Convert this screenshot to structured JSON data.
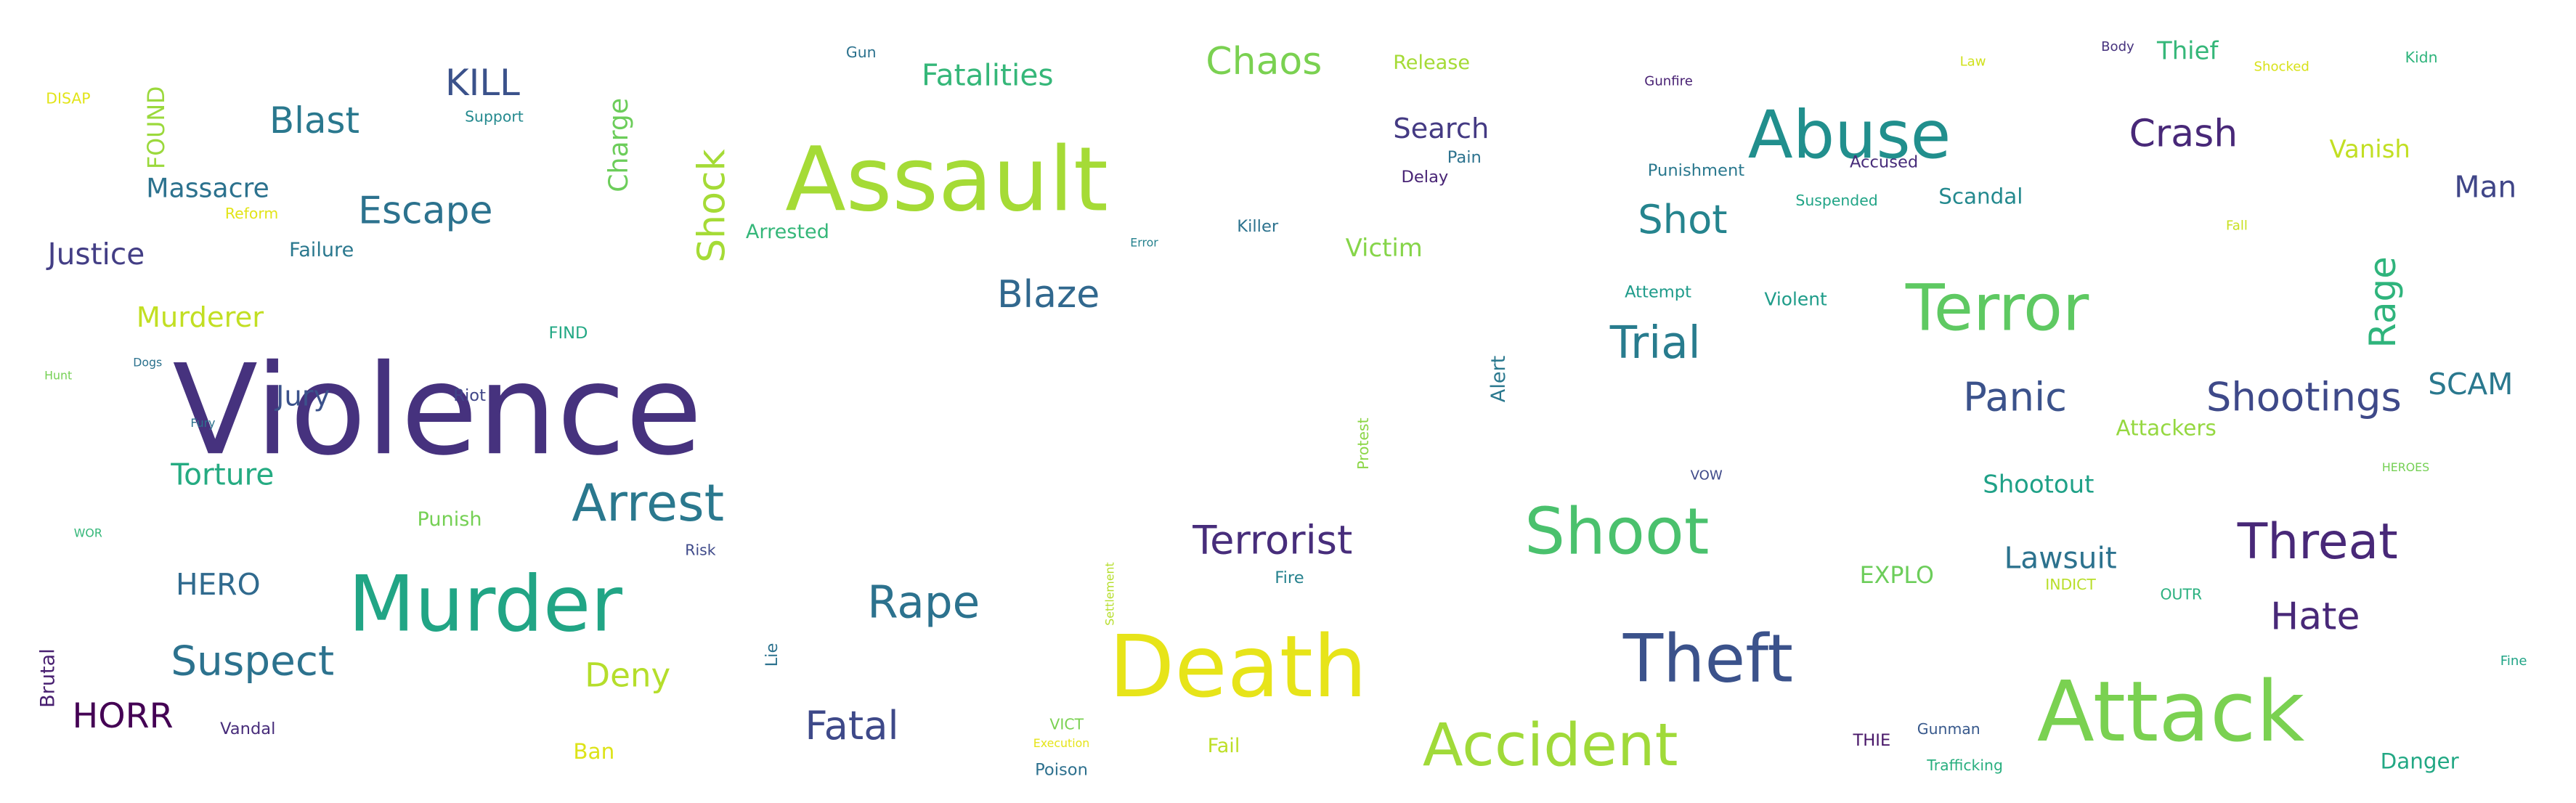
{
  "words": [
    {
      "text": "Violence",
      "color": "#46327e"
    },
    {
      "text": "Assault",
      "color": "#a5db36"
    },
    {
      "text": "Death",
      "color": "#e7e419"
    },
    {
      "text": "Murder",
      "color": "#21a585"
    },
    {
      "text": "Attack",
      "color": "#7ad151"
    },
    {
      "text": "Abuse",
      "color": "#218f8d"
    },
    {
      "text": "Terror",
      "color": "#5ec962"
    },
    {
      "text": "Theft",
      "color": "#3b528b"
    },
    {
      "text": "Accident",
      "color": "#a0da39"
    },
    {
      "text": "Shoot",
      "color": "#4ac16d"
    },
    {
      "text": "Arrest",
      "color": "#2a788e"
    },
    {
      "text": "Threat",
      "color": "#482878"
    },
    {
      "text": "Shock",
      "color": "#a5db36"
    },
    {
      "text": "Escape",
      "color": "#2c728e"
    },
    {
      "text": "Blast",
      "color": "#2a788e"
    },
    {
      "text": "Chaos",
      "color": "#7ad151"
    },
    {
      "text": "Crash",
      "color": "#482878"
    },
    {
      "text": "Rape",
      "color": "#2c728e"
    },
    {
      "text": "Terrorist",
      "color": "#472d7b"
    },
    {
      "text": "Trial",
      "color": "#287c8e"
    },
    {
      "text": "Panic",
      "color": "#3b528b"
    },
    {
      "text": "Shootings",
      "color": "#3e4989"
    },
    {
      "text": "Rage",
      "color": "#2fb47c"
    },
    {
      "text": "Blaze",
      "color": "#31688e"
    },
    {
      "text": "Suspect",
      "color": "#2c728e"
    },
    {
      "text": "Fatal",
      "color": "#3e4989"
    },
    {
      "text": "Hate",
      "color": "#482878"
    },
    {
      "text": "Shot",
      "color": "#25848e"
    },
    {
      "text": "KILL",
      "color": "#3b528b"
    },
    {
      "text": "Search",
      "color": "#443a83"
    },
    {
      "text": "Justice",
      "color": "#433e85"
    },
    {
      "text": "Deny",
      "color": "#b5de2b"
    },
    {
      "text": "HORR",
      "color": "#440154"
    },
    {
      "text": "Lawsuit",
      "color": "#2c728e"
    },
    {
      "text": "Man",
      "color": "#404688"
    },
    {
      "text": "Torture",
      "color": "#25ab82"
    },
    {
      "text": "Murderer",
      "color": "#c2df23"
    },
    {
      "text": "HERO",
      "color": "#306a8e"
    },
    {
      "text": "SCAM",
      "color": "#2a788e"
    },
    {
      "text": "Fatalities",
      "color": "#35b779"
    },
    {
      "text": "Jury",
      "color": "#3b528b"
    },
    {
      "text": "Massacre",
      "color": "#2c728e"
    },
    {
      "text": "Charge",
      "color": "#6ccd5a"
    },
    {
      "text": "Victim",
      "color": "#86d549"
    },
    {
      "text": "Shootout",
      "color": "#1fa187"
    },
    {
      "text": "Vanish",
      "color": "#c2df23"
    },
    {
      "text": "Thief",
      "color": "#35b779"
    },
    {
      "text": "Attackers",
      "color": "#95d840"
    },
    {
      "text": "Scandal",
      "color": "#23898e"
    },
    {
      "text": "FOUND",
      "color": "#9bd93c"
    },
    {
      "text": "EXPLO",
      "color": "#6ccd5a"
    },
    {
      "text": "Danger",
      "color": "#22a884"
    },
    {
      "text": "Alert",
      "color": "#2a788e"
    },
    {
      "text": "Failure",
      "color": "#2a788e"
    },
    {
      "text": "Punish",
      "color": "#75d054"
    },
    {
      "text": "Brutal",
      "color": "#481f70"
    },
    {
      "text": "Ban",
      "color": "#dde318"
    },
    {
      "text": "Release",
      "color": "#a5db36"
    },
    {
      "text": "Arrested",
      "color": "#35b779"
    },
    {
      "text": "Fail",
      "color": "#bddf26"
    },
    {
      "text": "Vandal",
      "color": "#472c7a"
    },
    {
      "text": "Lie",
      "color": "#2c728e"
    },
    {
      "text": "Killer",
      "color": "#2c728e"
    },
    {
      "text": "Violent",
      "color": "#1e9c89"
    },
    {
      "text": "Attempt",
      "color": "#1e9b8a"
    },
    {
      "text": "Punishment",
      "color": "#2a788e"
    },
    {
      "text": "Pain",
      "color": "#2c728e"
    },
    {
      "text": "Delay",
      "color": "#482475"
    },
    {
      "text": "Poison",
      "color": "#2d708e"
    },
    {
      "text": "Accused",
      "color": "#472c7a"
    },
    {
      "text": "Riot",
      "color": "#404688"
    },
    {
      "text": "FIND",
      "color": "#22a884"
    },
    {
      "text": "Suspended",
      "color": "#20a486"
    },
    {
      "text": "Trafficking",
      "color": "#29af7f"
    },
    {
      "text": "Fire",
      "color": "#26828e"
    },
    {
      "text": "Risk",
      "color": "#3e4989"
    },
    {
      "text": "INDICT",
      "color": "#b8de29"
    },
    {
      "text": "VICT",
      "color": "#7ad151"
    },
    {
      "text": "Protest",
      "color": "#8bd646"
    },
    {
      "text": "DISAP",
      "color": "#e2e418"
    },
    {
      "text": "Reform",
      "color": "#e2e418"
    },
    {
      "text": "Gunman",
      "color": "#38598c"
    },
    {
      "text": "THIE",
      "color": "#481668"
    },
    {
      "text": "OUTR",
      "color": "#2ab07f"
    },
    {
      "text": "Support",
      "color": "#23898e"
    },
    {
      "text": "Gun",
      "color": "#2c728e"
    },
    {
      "text": "Gunfire",
      "color": "#482173"
    },
    {
      "text": "Law",
      "color": "#d0e11c"
    },
    {
      "text": "Body",
      "color": "#46327e"
    },
    {
      "text": "Shocked",
      "color": "#d8e219"
    },
    {
      "text": "Kidn",
      "color": "#2fb47c"
    },
    {
      "text": "Fall",
      "color": "#c8e020"
    },
    {
      "text": "Settlement",
      "color": "#b5de2b"
    },
    {
      "text": "Error",
      "color": "#26828e"
    },
    {
      "text": "VOW",
      "color": "#3e4989"
    },
    {
      "text": "Execution",
      "color": "#e5e419"
    },
    {
      "text": "Fine",
      "color": "#20a486"
    },
    {
      "text": "HEROES",
      "color": "#75d054"
    },
    {
      "text": "Hunt",
      "color": "#75d054"
    },
    {
      "text": "Dogs",
      "color": "#2c728e"
    },
    {
      "text": "Fury",
      "color": "#2c728e"
    },
    {
      "text": "WOR",
      "color": "#35b779"
    }
  ]
}
